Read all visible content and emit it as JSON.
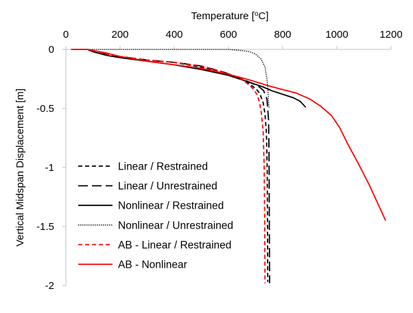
{
  "chart_data": {
    "type": "line",
    "xlabel": "Temperature [°C]",
    "xlabel_parts": {
      "pre": "Temperature [",
      "sup": "o",
      "post": "C]"
    },
    "ylabel": "Vertical Midspan Displacement [m]",
    "xlim": [
      0,
      1200
    ],
    "ylim": [
      -2,
      0
    ],
    "x_ticks": [
      0,
      200,
      400,
      600,
      800,
      1000,
      1200
    ],
    "y_ticks": [
      0,
      -0.5,
      -1,
      -1.5,
      -2
    ],
    "x_tick_labels": [
      "0",
      "200",
      "400",
      "600",
      "800",
      "1000",
      "1200"
    ],
    "y_tick_labels": [
      "0",
      "-0.5",
      "-1",
      "-1.5",
      "-2"
    ],
    "x_axis_position": "top",
    "grid": false,
    "legend_position": "bottom-left",
    "series": [
      {
        "name": "Linear / Restrained",
        "color": "#000000",
        "dash": "short-dash",
        "points": [
          [
            20,
            0
          ],
          [
            80,
            0
          ],
          [
            100,
            -0.01
          ],
          [
            150,
            -0.04
          ],
          [
            200,
            -0.06
          ],
          [
            300,
            -0.09
          ],
          [
            400,
            -0.11
          ],
          [
            500,
            -0.15
          ],
          [
            580,
            -0.19
          ],
          [
            640,
            -0.24
          ],
          [
            670,
            -0.28
          ],
          [
            700,
            -0.33
          ],
          [
            715,
            -0.37
          ],
          [
            728,
            -0.45
          ],
          [
            735,
            -0.55
          ],
          [
            740,
            -0.7
          ],
          [
            743,
            -1.0
          ],
          [
            744,
            -1.5
          ],
          [
            745,
            -1.97
          ]
        ]
      },
      {
        "name": "Linear / Unrestrained",
        "color": "#000000",
        "dash": "long-dash",
        "points": [
          [
            20,
            0
          ],
          [
            80,
            0
          ],
          [
            100,
            -0.01
          ],
          [
            150,
            -0.04
          ],
          [
            200,
            -0.06
          ],
          [
            300,
            -0.09
          ],
          [
            400,
            -0.11
          ],
          [
            500,
            -0.14
          ],
          [
            580,
            -0.19
          ],
          [
            640,
            -0.24
          ],
          [
            680,
            -0.28
          ],
          [
            710,
            -0.31
          ],
          [
            730,
            -0.35
          ],
          [
            742,
            -0.42
          ],
          [
            748,
            -0.6
          ],
          [
            750,
            -1.0
          ],
          [
            751,
            -1.5
          ],
          [
            752,
            -1.98
          ]
        ]
      },
      {
        "name": "Nonlinear / Restrained",
        "color": "#000000",
        "dash": "solid",
        "points": [
          [
            20,
            0
          ],
          [
            80,
            0
          ],
          [
            100,
            -0.02
          ],
          [
            150,
            -0.05
          ],
          [
            200,
            -0.07
          ],
          [
            300,
            -0.1
          ],
          [
            400,
            -0.13
          ],
          [
            500,
            -0.17
          ],
          [
            600,
            -0.22
          ],
          [
            680,
            -0.28
          ],
          [
            730,
            -0.32
          ],
          [
            760,
            -0.35
          ],
          [
            800,
            -0.38
          ],
          [
            840,
            -0.41
          ],
          [
            865,
            -0.44
          ],
          [
            885,
            -0.49
          ]
        ]
      },
      {
        "name": "Nonlinear / Unrestrained",
        "color": "#000000",
        "dash": "dotted",
        "points": [
          [
            20,
            0
          ],
          [
            100,
            0
          ],
          [
            300,
            0
          ],
          [
            500,
            0
          ],
          [
            600,
            0
          ],
          [
            650,
            -0.01
          ],
          [
            680,
            -0.02
          ],
          [
            700,
            -0.04
          ],
          [
            720,
            -0.08
          ],
          [
            735,
            -0.15
          ],
          [
            742,
            -0.25
          ],
          [
            746,
            -0.35
          ],
          [
            748,
            -0.45
          ],
          [
            750,
            -0.5
          ]
        ]
      },
      {
        "name": "AB - Linear / Restrained",
        "color": "#ff0000",
        "dash": "short-dash",
        "points": [
          [
            20,
            0
          ],
          [
            80,
            0
          ],
          [
            100,
            -0.01
          ],
          [
            150,
            -0.04
          ],
          [
            200,
            -0.06
          ],
          [
            300,
            -0.09
          ],
          [
            400,
            -0.11
          ],
          [
            500,
            -0.14
          ],
          [
            580,
            -0.19
          ],
          [
            640,
            -0.24
          ],
          [
            670,
            -0.29
          ],
          [
            690,
            -0.33
          ],
          [
            705,
            -0.38
          ],
          [
            715,
            -0.45
          ],
          [
            722,
            -0.55
          ],
          [
            728,
            -0.7
          ],
          [
            732,
            -1.0
          ],
          [
            734,
            -1.5
          ],
          [
            735,
            -1.98
          ]
        ]
      },
      {
        "name": "AB - Nonlinear",
        "color": "#ff0000",
        "dash": "solid",
        "points": [
          [
            20,
            0
          ],
          [
            80,
            0
          ],
          [
            150,
            -0.03
          ],
          [
            200,
            -0.06
          ],
          [
            300,
            -0.1
          ],
          [
            400,
            -0.13
          ],
          [
            500,
            -0.16
          ],
          [
            600,
            -0.21
          ],
          [
            680,
            -0.26
          ],
          [
            750,
            -0.31
          ],
          [
            800,
            -0.34
          ],
          [
            850,
            -0.37
          ],
          [
            900,
            -0.42
          ],
          [
            940,
            -0.48
          ],
          [
            980,
            -0.56
          ],
          [
            1010,
            -0.66
          ],
          [
            1040,
            -0.8
          ],
          [
            1080,
            -0.97
          ],
          [
            1120,
            -1.15
          ],
          [
            1150,
            -1.3
          ],
          [
            1180,
            -1.45
          ]
        ]
      }
    ]
  }
}
